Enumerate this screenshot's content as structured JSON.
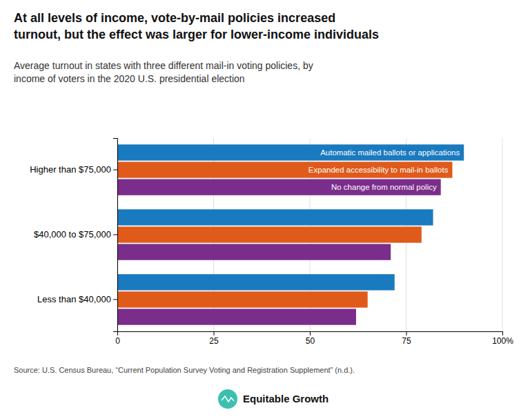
{
  "chart_data": {
    "type": "bar",
    "orientation": "horizontal",
    "title": "At all levels of income, vote-by-mail policies increased\nturnout, but the effect was larger for lower-income individuals",
    "subtitle": "Average turnout in states with three different mail-in voting policies, by\nincome of voters in the 2020 U.S. presidential election",
    "categories": [
      "Higher than $75,000",
      "$40,000 to $75,000",
      "Less than $40,000"
    ],
    "series": [
      {
        "name": "Automatic mailed ballots or applications",
        "color": "#1a7abf",
        "values": [
          90,
          82,
          72
        ]
      },
      {
        "name": "Expanded accessibility to mail-in ballots",
        "color": "#e05a1a",
        "values": [
          87,
          79,
          65
        ]
      },
      {
        "name": "No change from normal policy",
        "color": "#7b2d8b",
        "values": [
          84,
          71,
          62
        ]
      }
    ],
    "xlim": [
      0,
      100
    ],
    "xticks": [
      0,
      25,
      50,
      75,
      {
        "value": 100,
        "label": "100%"
      }
    ],
    "grid": true,
    "source": "Source: U.S. Census Bureau, “Current Population Survey Voting and Registration Supplement” (n.d.).",
    "annotations": [
      "Equitable Growth"
    ]
  }
}
